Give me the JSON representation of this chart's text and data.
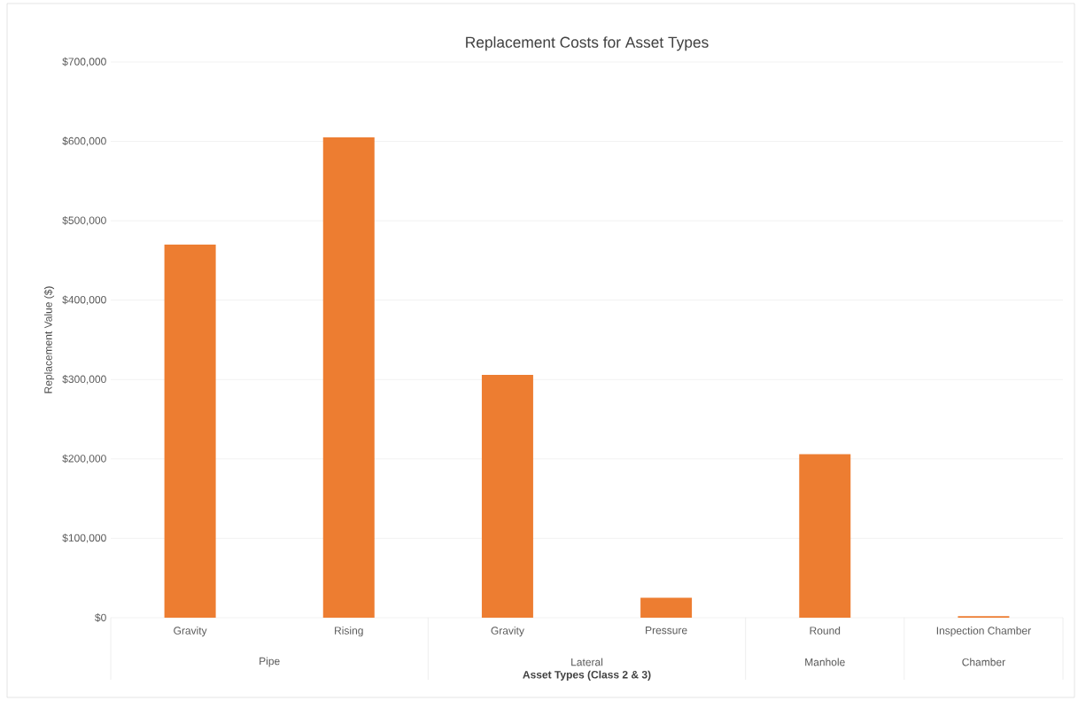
{
  "chart_data": {
    "type": "bar",
    "title": "Replacement Costs for Asset Types",
    "xlabel": "Asset Types (Class 2 & 3)",
    "ylabel": "Replacement Value ($)",
    "categories": [
      "Gravity",
      "Rising",
      "Gravity",
      "Pressure",
      "Round",
      "Inspection Chamber"
    ],
    "annotations": [
      "Pipe",
      "Lateral",
      "Manhole",
      "Chamber"
    ],
    "values": [
      470000,
      605000,
      306000,
      25000,
      206000,
      2000
    ],
    "color": "#ed7d31",
    "ylim": [
      0,
      700000
    ],
    "yticks": [
      {
        "value": 0,
        "label": "$0"
      },
      {
        "value": 100000,
        "label": "$100,000"
      },
      {
        "value": 200000,
        "label": "$200,000"
      },
      {
        "value": 300000,
        "label": "$300,000"
      },
      {
        "value": 400000,
        "label": "$400,000"
      },
      {
        "value": 500000,
        "label": "$500,000"
      },
      {
        "value": 600000,
        "label": "$600,000"
      },
      {
        "value": 700000,
        "label": "$700,000"
      }
    ],
    "grid": "y"
  }
}
